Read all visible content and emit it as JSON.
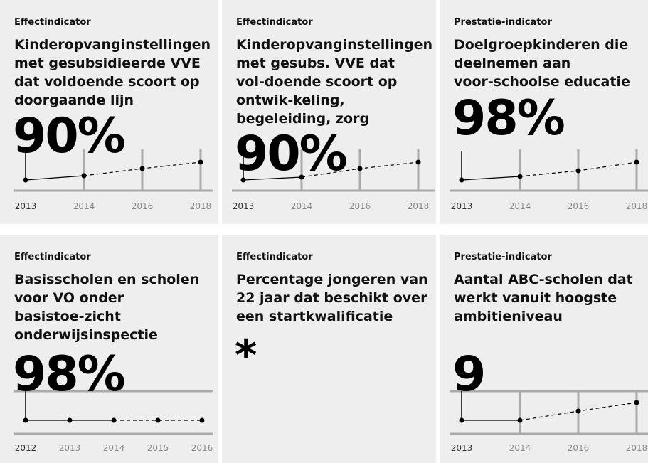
{
  "cards": [
    {
      "kind": "Effectindicator",
      "title": [
        "Kinderopvanginstellingen",
        "met gesubsidieerde VVE",
        "dat voldoende scoort op",
        "doorgaande lijn"
      ],
      "value": "90%",
      "years": [
        "2013",
        "2014",
        "2016",
        "2018"
      ]
    },
    {
      "kind": "Effectindicator",
      "title": [
        "Kinderopvanginstellingen",
        "met gesubs. VVE dat",
        "vol-doende scoort op",
        "ontwik-keling,",
        "begeleiding, zorg"
      ],
      "value": "90%",
      "years": [
        "2013",
        "2014",
        "2016",
        "2018"
      ]
    },
    {
      "kind": "Prestatie-indicator",
      "title": [
        "Doelgroepkinderen die",
        "deelnemen aan",
        "voor-schoolse educatie"
      ],
      "value": "98%",
      "years": [
        "2013",
        "2014",
        "2016",
        "2018"
      ]
    },
    {
      "kind": "Effectindicator",
      "title": [
        "Basisscholen en scholen",
        "voor VO onder",
        "basistoe-zicht",
        "onderwijsinspectie"
      ],
      "value": "98%",
      "years": [
        "2012",
        "2013",
        "2014",
        "2015",
        "2016"
      ]
    },
    {
      "kind": "Effectindicator",
      "title": [
        "Percentage jongeren van",
        "22 jaar dat beschikt over",
        "een startkwalificatie"
      ],
      "value": "*"
    },
    {
      "kind": "Prestatie-indicator",
      "title": [
        "Aantal ABC-scholen dat",
        "werkt vanuit hoogste",
        "ambitieniveau"
      ],
      "value": "9",
      "years": [
        "2013",
        "2014",
        "2016",
        "2018"
      ]
    }
  ]
}
